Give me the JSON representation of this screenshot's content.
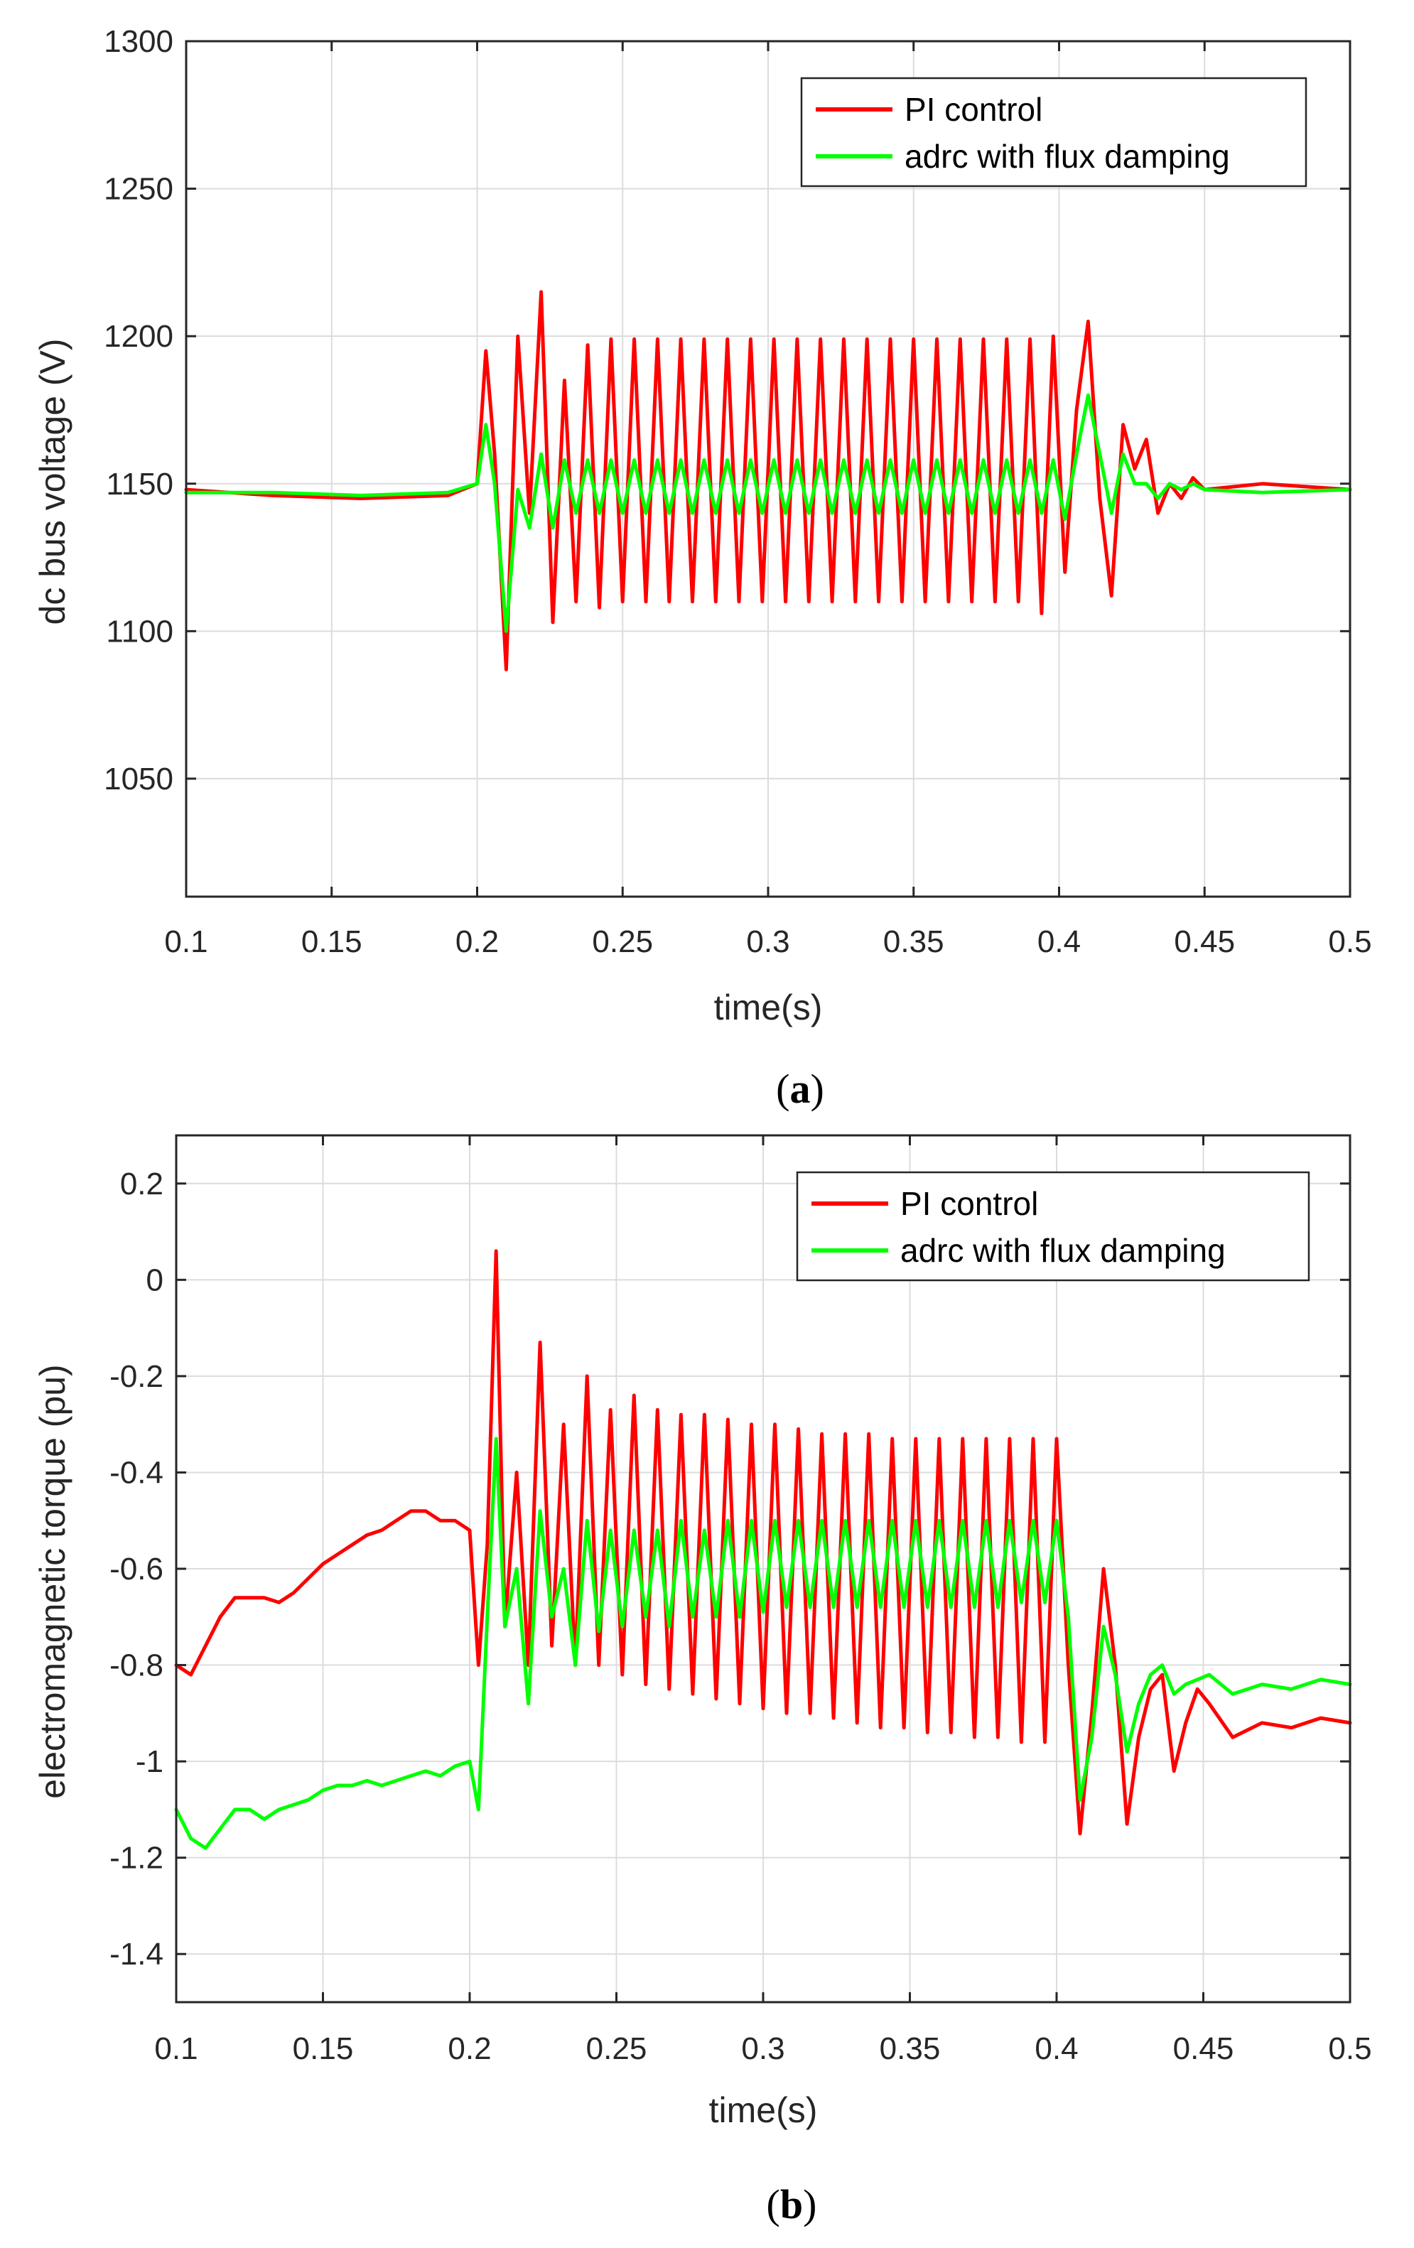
{
  "chart_data": [
    {
      "type": "line",
      "caption_letter": "a",
      "xlabel": "time(s)",
      "ylabel": "dc bus voltage (V)",
      "xlim": [
        0.1,
        0.5
      ],
      "ylim": [
        1010,
        1300
      ],
      "xticks": [
        0.1,
        0.15,
        0.2,
        0.25,
        0.3,
        0.35,
        0.4,
        0.45,
        0.5
      ],
      "yticks": [
        1050,
        1100,
        1150,
        1200,
        1250,
        1300
      ],
      "xtick_labels": [
        "0.1",
        "0.15",
        "0.2",
        "0.25",
        "0.3",
        "0.35",
        "0.4",
        "0.45",
        "0.5"
      ],
      "ytick_labels": [
        "1050",
        "1100",
        "1150",
        "1200",
        "1250",
        "1300"
      ],
      "grid": true,
      "legend_position": "top-right",
      "series": [
        {
          "name": "PI control",
          "color": "#ff0000",
          "x": [
            0.1,
            0.13,
            0.16,
            0.19,
            0.2,
            0.203,
            0.206,
            0.21,
            0.214,
            0.218,
            0.222,
            0.226,
            0.23,
            0.234,
            0.238,
            0.242,
            0.246,
            0.25,
            0.254,
            0.258,
            0.262,
            0.266,
            0.27,
            0.274,
            0.278,
            0.282,
            0.286,
            0.29,
            0.294,
            0.298,
            0.302,
            0.306,
            0.31,
            0.314,
            0.318,
            0.322,
            0.326,
            0.33,
            0.334,
            0.338,
            0.342,
            0.346,
            0.35,
            0.354,
            0.358,
            0.362,
            0.366,
            0.37,
            0.374,
            0.378,
            0.382,
            0.386,
            0.39,
            0.394,
            0.398,
            0.402,
            0.406,
            0.41,
            0.414,
            0.418,
            0.422,
            0.426,
            0.43,
            0.434,
            0.438,
            0.442,
            0.446,
            0.45,
            0.47,
            0.5
          ],
          "y": [
            1148,
            1146,
            1145,
            1146,
            1150,
            1195,
            1160,
            1087,
            1200,
            1140,
            1215,
            1103,
            1185,
            1110,
            1197,
            1108,
            1199,
            1110,
            1199,
            1110,
            1199,
            1110,
            1199,
            1110,
            1199,
            1110,
            1199,
            1110,
            1199,
            1110,
            1199,
            1110,
            1199,
            1110,
            1199,
            1110,
            1199,
            1110,
            1199,
            1110,
            1199,
            1110,
            1199,
            1110,
            1199,
            1110,
            1199,
            1110,
            1199,
            1110,
            1199,
            1110,
            1199,
            1106,
            1200,
            1120,
            1175,
            1205,
            1145,
            1112,
            1170,
            1155,
            1165,
            1140,
            1150,
            1145,
            1152,
            1148,
            1150,
            1148
          ]
        },
        {
          "name": "adrc with flux damping",
          "color": "#00ff00",
          "x": [
            0.1,
            0.13,
            0.16,
            0.19,
            0.2,
            0.203,
            0.206,
            0.21,
            0.214,
            0.218,
            0.222,
            0.226,
            0.23,
            0.234,
            0.238,
            0.242,
            0.246,
            0.25,
            0.254,
            0.258,
            0.262,
            0.266,
            0.27,
            0.274,
            0.278,
            0.282,
            0.286,
            0.29,
            0.294,
            0.298,
            0.302,
            0.306,
            0.31,
            0.314,
            0.318,
            0.322,
            0.326,
            0.33,
            0.334,
            0.338,
            0.342,
            0.346,
            0.35,
            0.354,
            0.358,
            0.362,
            0.366,
            0.37,
            0.374,
            0.378,
            0.382,
            0.386,
            0.39,
            0.394,
            0.398,
            0.402,
            0.406,
            0.41,
            0.414,
            0.418,
            0.422,
            0.426,
            0.43,
            0.434,
            0.438,
            0.442,
            0.446,
            0.45,
            0.47,
            0.5
          ],
          "y": [
            1147,
            1147,
            1146,
            1147,
            1150,
            1170,
            1150,
            1100,
            1148,
            1135,
            1160,
            1135,
            1158,
            1140,
            1158,
            1140,
            1158,
            1140,
            1158,
            1140,
            1158,
            1140,
            1158,
            1140,
            1158,
            1140,
            1158,
            1140,
            1158,
            1140,
            1158,
            1140,
            1158,
            1140,
            1158,
            1140,
            1158,
            1140,
            1158,
            1140,
            1158,
            1140,
            1158,
            1140,
            1158,
            1140,
            1158,
            1140,
            1158,
            1140,
            1158,
            1140,
            1158,
            1140,
            1158,
            1138,
            1160,
            1180,
            1160,
            1140,
            1160,
            1150,
            1150,
            1145,
            1150,
            1148,
            1150,
            1148,
            1147,
            1148
          ]
        }
      ]
    },
    {
      "type": "line",
      "caption_letter": "b",
      "xlabel": "time(s)",
      "ylabel": "electromagnetic torque (pu)",
      "xlim": [
        0.1,
        0.5
      ],
      "ylim": [
        -1.5,
        0.3
      ],
      "xticks": [
        0.1,
        0.15,
        0.2,
        0.25,
        0.3,
        0.35,
        0.4,
        0.45,
        0.5
      ],
      "yticks": [
        -1.4,
        -1.2,
        -1,
        -0.8,
        -0.6,
        -0.4,
        -0.2,
        0,
        0.2
      ],
      "xtick_labels": [
        "0.1",
        "0.15",
        "0.2",
        "0.25",
        "0.3",
        "0.35",
        "0.4",
        "0.45",
        "0.5"
      ],
      "ytick_labels": [
        "-1.4",
        "-1.2",
        "-1",
        "-0.8",
        "-0.6",
        "-0.4",
        "-0.2",
        "0",
        "0.2"
      ],
      "grid": true,
      "legend_position": "top-right",
      "series": [
        {
          "name": "PI control",
          "color": "#ff0000",
          "x": [
            0.1,
            0.105,
            0.11,
            0.115,
            0.12,
            0.125,
            0.13,
            0.135,
            0.14,
            0.145,
            0.15,
            0.155,
            0.16,
            0.165,
            0.17,
            0.175,
            0.18,
            0.185,
            0.19,
            0.195,
            0.2,
            0.203,
            0.206,
            0.209,
            0.212,
            0.216,
            0.22,
            0.224,
            0.228,
            0.232,
            0.236,
            0.24,
            0.244,
            0.248,
            0.252,
            0.256,
            0.26,
            0.264,
            0.268,
            0.272,
            0.276,
            0.28,
            0.284,
            0.288,
            0.292,
            0.296,
            0.3,
            0.304,
            0.308,
            0.312,
            0.316,
            0.32,
            0.324,
            0.328,
            0.332,
            0.336,
            0.34,
            0.344,
            0.348,
            0.352,
            0.356,
            0.36,
            0.364,
            0.368,
            0.372,
            0.376,
            0.38,
            0.384,
            0.388,
            0.392,
            0.396,
            0.4,
            0.404,
            0.408,
            0.412,
            0.416,
            0.42,
            0.424,
            0.428,
            0.432,
            0.436,
            0.44,
            0.444,
            0.448,
            0.452,
            0.46,
            0.47,
            0.48,
            0.49,
            0.5
          ],
          "y": [
            -0.8,
            -0.82,
            -0.76,
            -0.7,
            -0.66,
            -0.66,
            -0.66,
            -0.67,
            -0.65,
            -0.62,
            -0.59,
            -0.57,
            -0.55,
            -0.53,
            -0.52,
            -0.5,
            -0.48,
            -0.48,
            -0.5,
            -0.5,
            -0.52,
            -0.8,
            -0.55,
            0.06,
            -0.72,
            -0.4,
            -0.8,
            -0.13,
            -0.76,
            -0.3,
            -0.8,
            -0.2,
            -0.8,
            -0.27,
            -0.82,
            -0.24,
            -0.84,
            -0.27,
            -0.85,
            -0.28,
            -0.86,
            -0.28,
            -0.87,
            -0.29,
            -0.88,
            -0.3,
            -0.89,
            -0.3,
            -0.9,
            -0.31,
            -0.9,
            -0.32,
            -0.91,
            -0.32,
            -0.92,
            -0.32,
            -0.93,
            -0.33,
            -0.93,
            -0.33,
            -0.94,
            -0.33,
            -0.94,
            -0.33,
            -0.95,
            -0.33,
            -0.95,
            -0.33,
            -0.96,
            -0.33,
            -0.96,
            -0.33,
            -0.8,
            -1.15,
            -0.9,
            -0.6,
            -0.8,
            -1.13,
            -0.95,
            -0.85,
            -0.82,
            -1.02,
            -0.92,
            -0.85,
            -0.88,
            -0.95,
            -0.92,
            -0.93,
            -0.91,
            -0.92
          ]
        },
        {
          "name": "adrc with flux damping",
          "color": "#00ff00",
          "x": [
            0.1,
            0.105,
            0.11,
            0.115,
            0.12,
            0.125,
            0.13,
            0.135,
            0.14,
            0.145,
            0.15,
            0.155,
            0.16,
            0.165,
            0.17,
            0.175,
            0.18,
            0.185,
            0.19,
            0.195,
            0.2,
            0.203,
            0.206,
            0.209,
            0.212,
            0.216,
            0.22,
            0.224,
            0.228,
            0.232,
            0.236,
            0.24,
            0.244,
            0.248,
            0.252,
            0.256,
            0.26,
            0.264,
            0.268,
            0.272,
            0.276,
            0.28,
            0.284,
            0.288,
            0.292,
            0.296,
            0.3,
            0.304,
            0.308,
            0.312,
            0.316,
            0.32,
            0.324,
            0.328,
            0.332,
            0.336,
            0.34,
            0.344,
            0.348,
            0.352,
            0.356,
            0.36,
            0.364,
            0.368,
            0.372,
            0.376,
            0.38,
            0.384,
            0.388,
            0.392,
            0.396,
            0.4,
            0.404,
            0.408,
            0.412,
            0.416,
            0.42,
            0.424,
            0.428,
            0.432,
            0.436,
            0.44,
            0.444,
            0.448,
            0.452,
            0.46,
            0.47,
            0.48,
            0.49,
            0.5
          ],
          "y": [
            -1.1,
            -1.16,
            -1.18,
            -1.14,
            -1.1,
            -1.1,
            -1.12,
            -1.1,
            -1.09,
            -1.08,
            -1.06,
            -1.05,
            -1.05,
            -1.04,
            -1.05,
            -1.04,
            -1.03,
            -1.02,
            -1.03,
            -1.01,
            -1.0,
            -1.1,
            -0.7,
            -0.33,
            -0.72,
            -0.6,
            -0.88,
            -0.48,
            -0.7,
            -0.6,
            -0.8,
            -0.5,
            -0.73,
            -0.52,
            -0.72,
            -0.52,
            -0.7,
            -0.52,
            -0.72,
            -0.5,
            -0.7,
            -0.52,
            -0.7,
            -0.5,
            -0.7,
            -0.5,
            -0.69,
            -0.5,
            -0.68,
            -0.5,
            -0.68,
            -0.5,
            -0.68,
            -0.5,
            -0.68,
            -0.5,
            -0.68,
            -0.5,
            -0.68,
            -0.5,
            -0.68,
            -0.5,
            -0.68,
            -0.5,
            -0.68,
            -0.5,
            -0.68,
            -0.5,
            -0.67,
            -0.5,
            -0.67,
            -0.5,
            -0.7,
            -1.08,
            -0.95,
            -0.72,
            -0.82,
            -0.98,
            -0.88,
            -0.82,
            -0.8,
            -0.86,
            -0.84,
            -0.83,
            -0.82,
            -0.86,
            -0.84,
            -0.85,
            -0.83,
            -0.84
          ]
        }
      ]
    }
  ]
}
